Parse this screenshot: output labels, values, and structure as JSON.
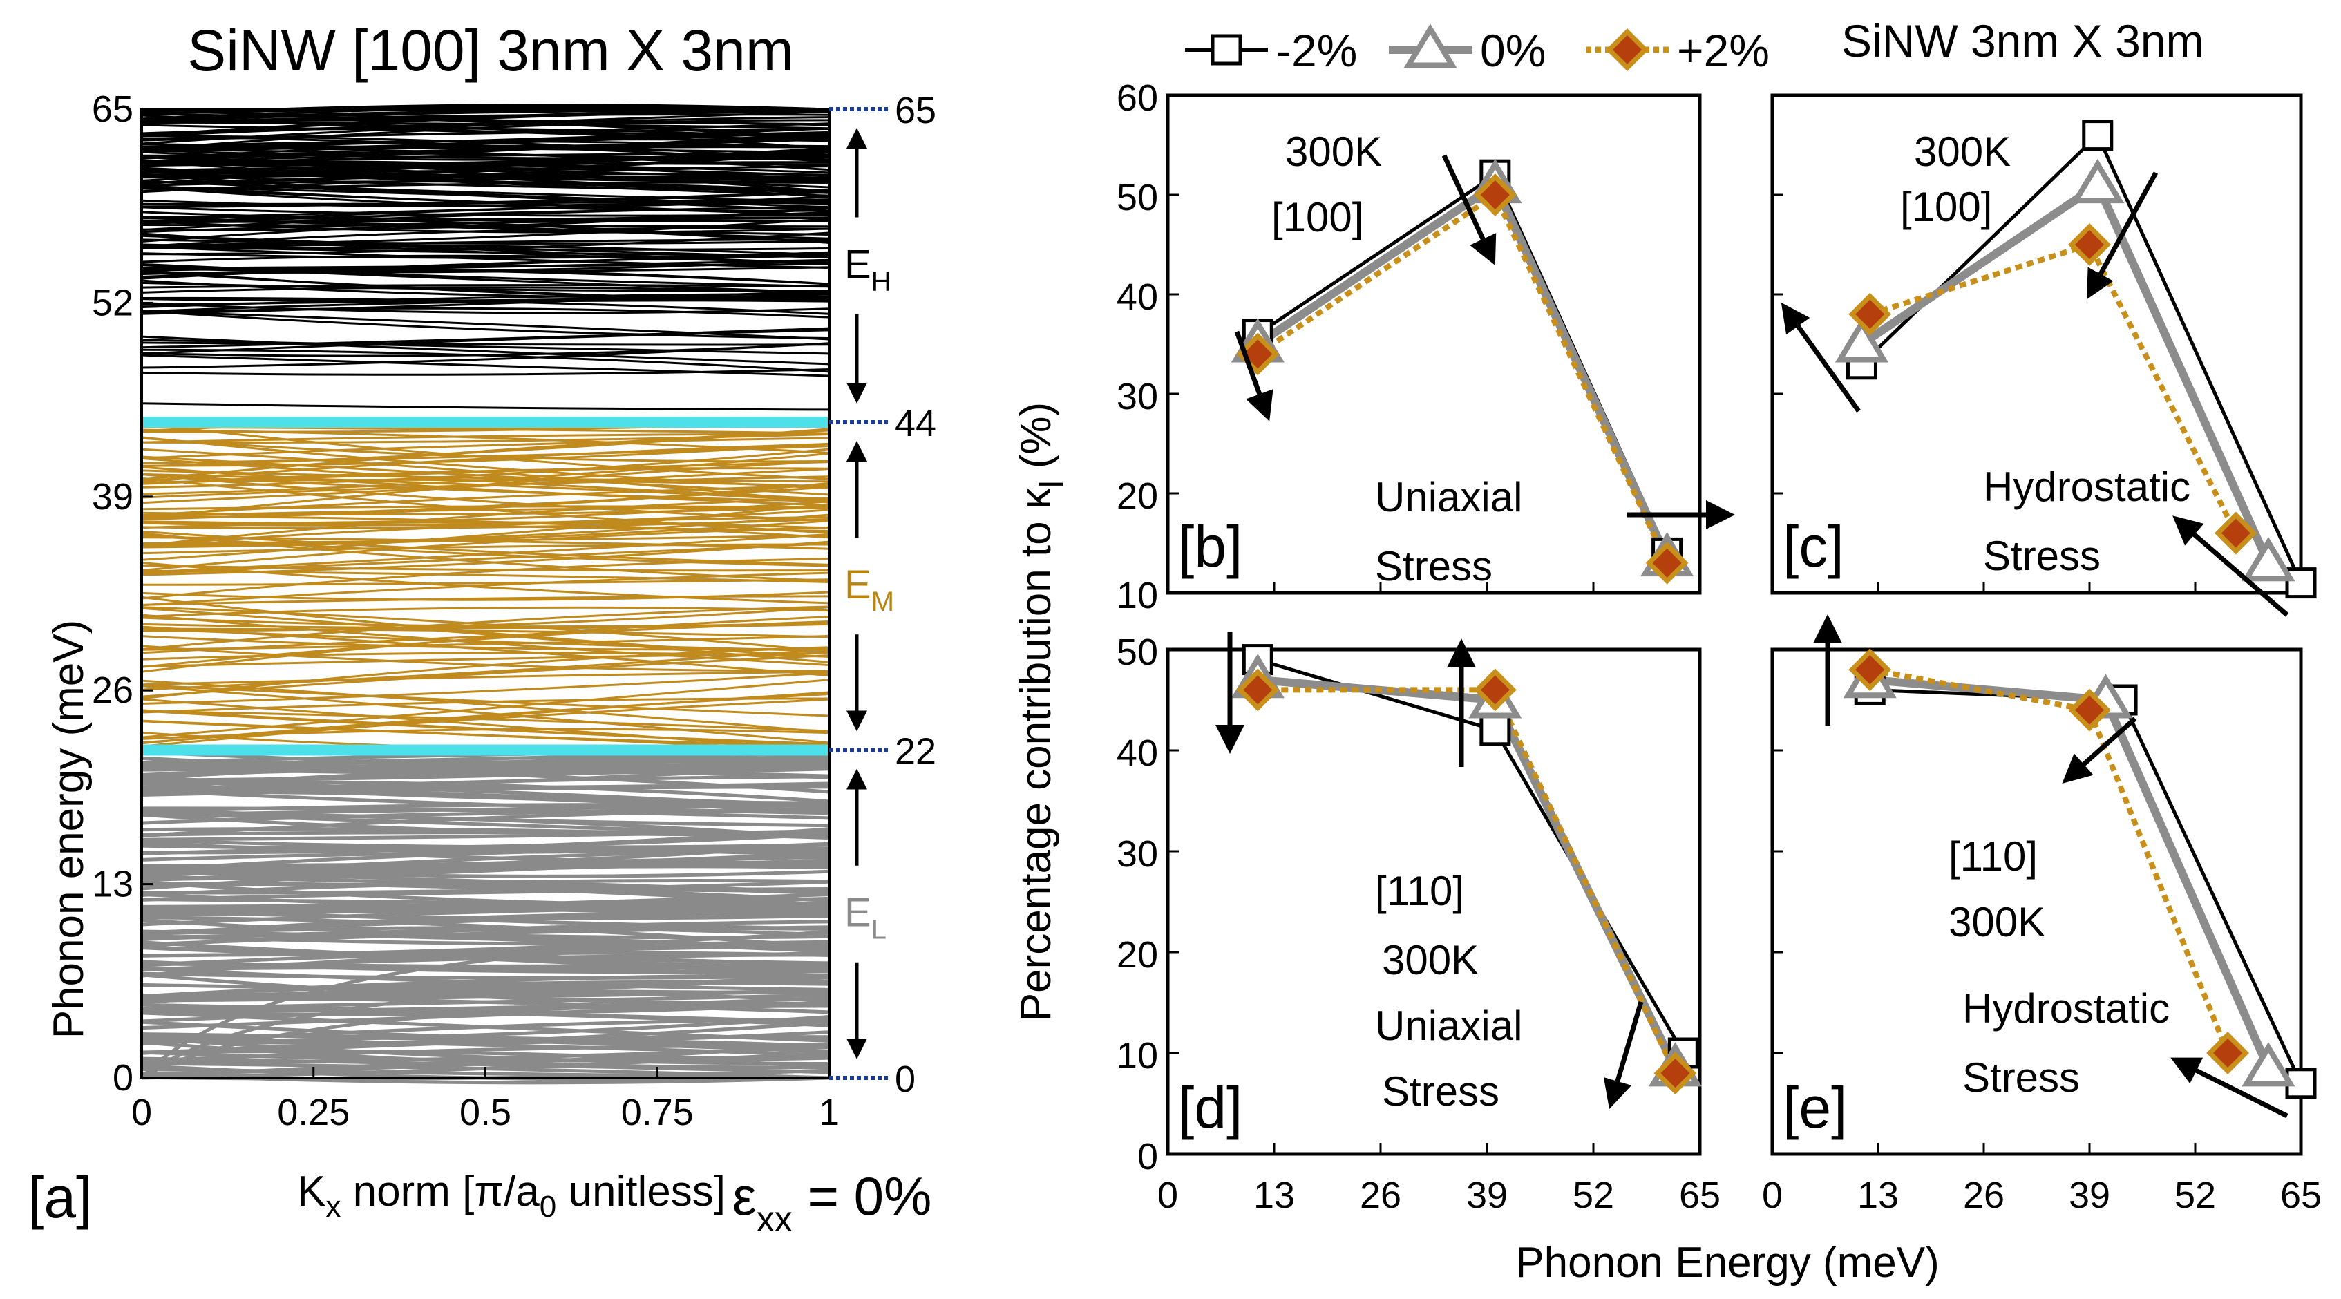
{
  "figure": {
    "legend_entries": [
      "-2%",
      "0%",
      "+2%"
    ],
    "legend_caption": "SiNW 3nm X 3nm",
    "shared_ylabel": "Percentage contribution to κ",
    "shared_ylabel_sub": "l",
    "shared_ylabel_suffix": " (%)",
    "shared_xlabel": "Phonon Energy (meV)",
    "colors": {
      "minus2": "#000000",
      "zero": "#8c8c8c",
      "plus2": "#c8901a",
      "plus2_fill": "#b5400e",
      "band_low": "#8a8a8a",
      "band_mid": "#c08a1c",
      "band_high": "#000000",
      "boundary": "#4de0e8",
      "tickmark": "#1e3c8c"
    }
  },
  "chart_data": [
    {
      "type": "line",
      "title": "SiNW [100] 3nm X 3nm",
      "panel_tag": "[a]",
      "xlabel": "K",
      "xlabel_sub1": "x",
      "xlabel_mid": " norm [π/a",
      "xlabel_sub2": "0",
      "xlabel_tail": " unitless]",
      "strain_label": "ε",
      "strain_sub": "xx",
      "strain_value": " = 0%",
      "ylabel": "Phonon energy (meV)",
      "xlim": [
        0,
        1
      ],
      "ylim": [
        0,
        65
      ],
      "xticks": [
        "0",
        "0.25",
        "0.5",
        "0.75",
        "1"
      ],
      "yticks": [
        "0",
        "13",
        "26",
        "39",
        "52",
        "65"
      ],
      "right_ticks": [
        "0",
        "22",
        "44",
        "65"
      ],
      "bands": [
        {
          "name": "E",
          "sub": "L",
          "range": [
            0,
            22
          ]
        },
        {
          "name": "E",
          "sub": "M",
          "range": [
            22,
            44
          ]
        },
        {
          "name": "E",
          "sub": "H",
          "range": [
            44,
            65
          ]
        }
      ],
      "boundaries": [
        22,
        44
      ]
    },
    {
      "type": "line",
      "panel_tag": "[b]",
      "labels": [
        "300K",
        "[100]",
        "Uniaxial",
        "Stress"
      ],
      "x": [
        13,
        39,
        65
      ],
      "xlim": [
        0,
        65
      ],
      "ylim": [
        10,
        60
      ],
      "yticks": [
        "10",
        "20",
        "30",
        "40",
        "50",
        "60"
      ],
      "series": [
        {
          "name": "-2%",
          "x": [
            11,
            40,
            61
          ],
          "values": [
            36,
            52,
            14
          ]
        },
        {
          "name": "0%",
          "x": [
            11,
            40,
            61
          ],
          "values": [
            35,
            51,
            13.5
          ]
        },
        {
          "name": "+2%",
          "x": [
            11,
            40,
            61
          ],
          "values": [
            34,
            50,
            13
          ]
        }
      ]
    },
    {
      "type": "line",
      "panel_tag": "[c]",
      "labels": [
        "300K",
        "[100]",
        "Hydrostatic",
        "Stress"
      ],
      "xlim": [
        0,
        65
      ],
      "ylim": [
        10,
        60
      ],
      "series": [
        {
          "name": "-2%",
          "x": [
            11,
            40,
            65
          ],
          "values": [
            33,
            56,
            11
          ]
        },
        {
          "name": "0%",
          "x": [
            11,
            40,
            61
          ],
          "values": [
            35,
            51,
            13
          ]
        },
        {
          "name": "+2%",
          "x": [
            12,
            39,
            57
          ],
          "values": [
            38,
            45,
            16
          ]
        }
      ]
    },
    {
      "type": "line",
      "panel_tag": "[d]",
      "labels": [
        "[110]",
        "300K",
        "Uniaxial",
        "Stress"
      ],
      "xlim": [
        0,
        65
      ],
      "ylim": [
        0,
        50
      ],
      "yticks": [
        "0",
        "10",
        "20",
        "30",
        "40",
        "50"
      ],
      "xticks": [
        "0",
        "13",
        "26",
        "39",
        "52",
        "65"
      ],
      "series": [
        {
          "name": "-2%",
          "x": [
            11,
            40,
            63
          ],
          "values": [
            49,
            42,
            10
          ]
        },
        {
          "name": "0%",
          "x": [
            11,
            40,
            62
          ],
          "values": [
            47,
            45,
            8.5
          ]
        },
        {
          "name": "+2%",
          "x": [
            11,
            40,
            62
          ],
          "values": [
            46,
            46,
            8
          ]
        }
      ]
    },
    {
      "type": "line",
      "panel_tag": "[e]",
      "labels": [
        "[110]",
        "300K",
        "Hydrostatic",
        "Stress"
      ],
      "xlim": [
        0,
        65
      ],
      "ylim": [
        0,
        50
      ],
      "xticks": [
        "0",
        "13",
        "26",
        "39",
        "52",
        "65"
      ],
      "series": [
        {
          "name": "-2%",
          "x": [
            12,
            43,
            65
          ],
          "values": [
            46,
            45,
            7
          ]
        },
        {
          "name": "0%",
          "x": [
            12,
            41,
            61
          ],
          "values": [
            47,
            45,
            8.5
          ]
        },
        {
          "name": "+2%",
          "x": [
            12,
            39,
            56
          ],
          "values": [
            48,
            44,
            10
          ]
        }
      ]
    }
  ]
}
